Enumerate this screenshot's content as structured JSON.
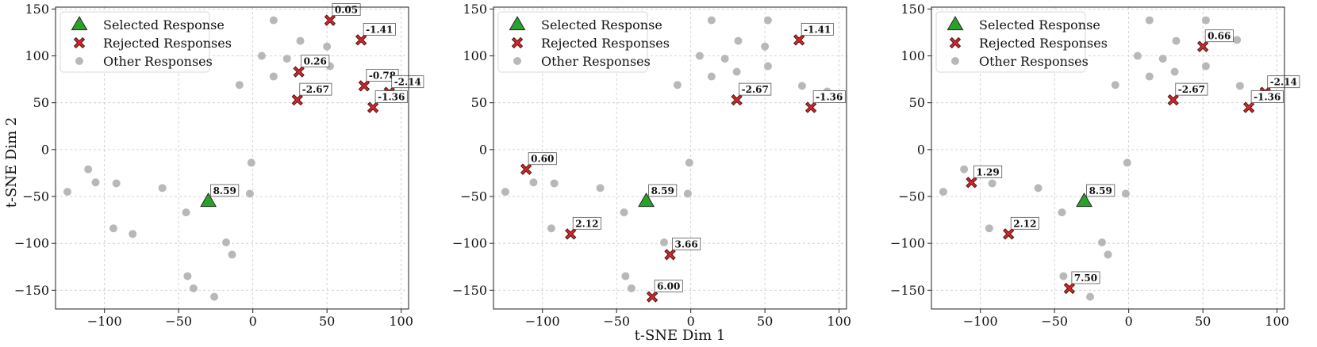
{
  "figure": {
    "xlabel": "t-SNE Dim 1",
    "ylabel": "t-SNE Dim 2"
  },
  "legend": {
    "selected": "Selected Response",
    "rejected": "Rejected Responses",
    "other": "Other Responses"
  },
  "colors": {
    "selected": "#2ca02c",
    "rejected": "#d62728",
    "other": "#b8b8b8",
    "grid": "#c8c8c8"
  },
  "chart_data": [
    {
      "type": "scatter",
      "xlim": [
        -133,
        105
      ],
      "ylim": [
        -170,
        152
      ],
      "xticks": [
        -100,
        -50,
        0,
        50,
        100
      ],
      "yticks": [
        -150,
        -100,
        -50,
        0,
        50,
        100,
        150
      ],
      "xlabel": "",
      "ylabel": "t-SNE Dim 2",
      "grid": true,
      "legend_position": "top-left",
      "selected": [
        {
          "x": -30,
          "y": -55,
          "label": "8.59"
        }
      ],
      "rejected": [
        {
          "x": 52,
          "y": 138,
          "label": "0.05"
        },
        {
          "x": 73,
          "y": 117,
          "label": "-1.41"
        },
        {
          "x": 31,
          "y": 83,
          "label": "0.26"
        },
        {
          "x": 75,
          "y": 68,
          "label": "-0.78"
        },
        {
          "x": 92,
          "y": 61,
          "label": "-2.14"
        },
        {
          "x": 30,
          "y": 53,
          "label": "-2.67"
        },
        {
          "x": 81,
          "y": 45,
          "label": "-1.36"
        }
      ],
      "other": [
        {
          "x": 14,
          "y": 138
        },
        {
          "x": 32,
          "y": 116
        },
        {
          "x": 50,
          "y": 110
        },
        {
          "x": 6,
          "y": 100
        },
        {
          "x": 23,
          "y": 97
        },
        {
          "x": 52,
          "y": 89
        },
        {
          "x": 14,
          "y": 78
        },
        {
          "x": -9,
          "y": 69
        },
        {
          "x": -1,
          "y": -14
        },
        {
          "x": -111,
          "y": -21
        },
        {
          "x": -106,
          "y": -35
        },
        {
          "x": -92,
          "y": -36
        },
        {
          "x": -125,
          "y": -45
        },
        {
          "x": -61,
          "y": -41
        },
        {
          "x": -16,
          "y": -43
        },
        {
          "x": -2,
          "y": -47
        },
        {
          "x": -45,
          "y": -67
        },
        {
          "x": -94,
          "y": -84
        },
        {
          "x": -81,
          "y": -90
        },
        {
          "x": -18,
          "y": -99
        },
        {
          "x": -14,
          "y": -112
        },
        {
          "x": -44,
          "y": -135
        },
        {
          "x": -40,
          "y": -148
        },
        {
          "x": -26,
          "y": -157
        }
      ]
    },
    {
      "type": "scatter",
      "xlim": [
        -133,
        105
      ],
      "ylim": [
        -170,
        152
      ],
      "xticks": [
        -100,
        -50,
        0,
        50,
        100
      ],
      "yticks": [
        -150,
        -100,
        -50,
        0,
        50,
        100,
        150
      ],
      "xlabel": "t-SNE Dim 1",
      "ylabel": "",
      "grid": true,
      "legend_position": "top-left",
      "selected": [
        {
          "x": -30,
          "y": -55,
          "label": "8.59"
        }
      ],
      "rejected": [
        {
          "x": 73,
          "y": 117,
          "label": "-1.41"
        },
        {
          "x": 31,
          "y": 53,
          "label": "-2.67"
        },
        {
          "x": 81,
          "y": 45,
          "label": "-1.36"
        },
        {
          "x": -111,
          "y": -21,
          "label": "0.60"
        },
        {
          "x": -81,
          "y": -90,
          "label": "2.12"
        },
        {
          "x": -14,
          "y": -112,
          "label": "3.66"
        },
        {
          "x": -26,
          "y": -157,
          "label": "6.00"
        }
      ],
      "other": [
        {
          "x": 14,
          "y": 138
        },
        {
          "x": 52,
          "y": 138
        },
        {
          "x": 32,
          "y": 116
        },
        {
          "x": 50,
          "y": 110
        },
        {
          "x": 6,
          "y": 100
        },
        {
          "x": 23,
          "y": 97
        },
        {
          "x": 52,
          "y": 89
        },
        {
          "x": 31,
          "y": 83
        },
        {
          "x": 14,
          "y": 78
        },
        {
          "x": -9,
          "y": 69
        },
        {
          "x": 75,
          "y": 68
        },
        {
          "x": 92,
          "y": 62
        },
        {
          "x": -1,
          "y": -14
        },
        {
          "x": -106,
          "y": -35
        },
        {
          "x": -92,
          "y": -36
        },
        {
          "x": -125,
          "y": -45
        },
        {
          "x": -61,
          "y": -41
        },
        {
          "x": -16,
          "y": -43
        },
        {
          "x": -2,
          "y": -47
        },
        {
          "x": -45,
          "y": -67
        },
        {
          "x": -94,
          "y": -84
        },
        {
          "x": -18,
          "y": -99
        },
        {
          "x": -44,
          "y": -135
        },
        {
          "x": -40,
          "y": -148
        }
      ]
    },
    {
      "type": "scatter",
      "xlim": [
        -133,
        105
      ],
      "ylim": [
        -170,
        152
      ],
      "xticks": [
        -100,
        -50,
        0,
        50,
        100
      ],
      "yticks": [
        -150,
        -100,
        -50,
        0,
        50,
        100,
        150
      ],
      "xlabel": "",
      "ylabel": "",
      "grid": true,
      "legend_position": "top-left",
      "selected": [
        {
          "x": -30,
          "y": -55,
          "label": "8.59"
        }
      ],
      "rejected": [
        {
          "x": 50,
          "y": 110,
          "label": "0.66"
        },
        {
          "x": 92,
          "y": 61,
          "label": "-2.14"
        },
        {
          "x": 30,
          "y": 53,
          "label": "-2.67"
        },
        {
          "x": 81,
          "y": 45,
          "label": "-1.36"
        },
        {
          "x": -106,
          "y": -35,
          "label": "1.29"
        },
        {
          "x": -81,
          "y": -90,
          "label": "2.12"
        },
        {
          "x": -40,
          "y": -148,
          "label": "7.50"
        }
      ],
      "other": [
        {
          "x": 14,
          "y": 138
        },
        {
          "x": 52,
          "y": 138
        },
        {
          "x": 32,
          "y": 116
        },
        {
          "x": 73,
          "y": 117
        },
        {
          "x": 6,
          "y": 100
        },
        {
          "x": 23,
          "y": 97
        },
        {
          "x": 52,
          "y": 89
        },
        {
          "x": 31,
          "y": 83
        },
        {
          "x": 14,
          "y": 78
        },
        {
          "x": -9,
          "y": 69
        },
        {
          "x": 75,
          "y": 68
        },
        {
          "x": -1,
          "y": -14
        },
        {
          "x": -111,
          "y": -21
        },
        {
          "x": -92,
          "y": -36
        },
        {
          "x": -125,
          "y": -45
        },
        {
          "x": -61,
          "y": -41
        },
        {
          "x": -16,
          "y": -43
        },
        {
          "x": -2,
          "y": -47
        },
        {
          "x": -45,
          "y": -67
        },
        {
          "x": -94,
          "y": -84
        },
        {
          "x": -18,
          "y": -99
        },
        {
          "x": -14,
          "y": -112
        },
        {
          "x": -44,
          "y": -135
        },
        {
          "x": -26,
          "y": -157
        }
      ]
    }
  ]
}
